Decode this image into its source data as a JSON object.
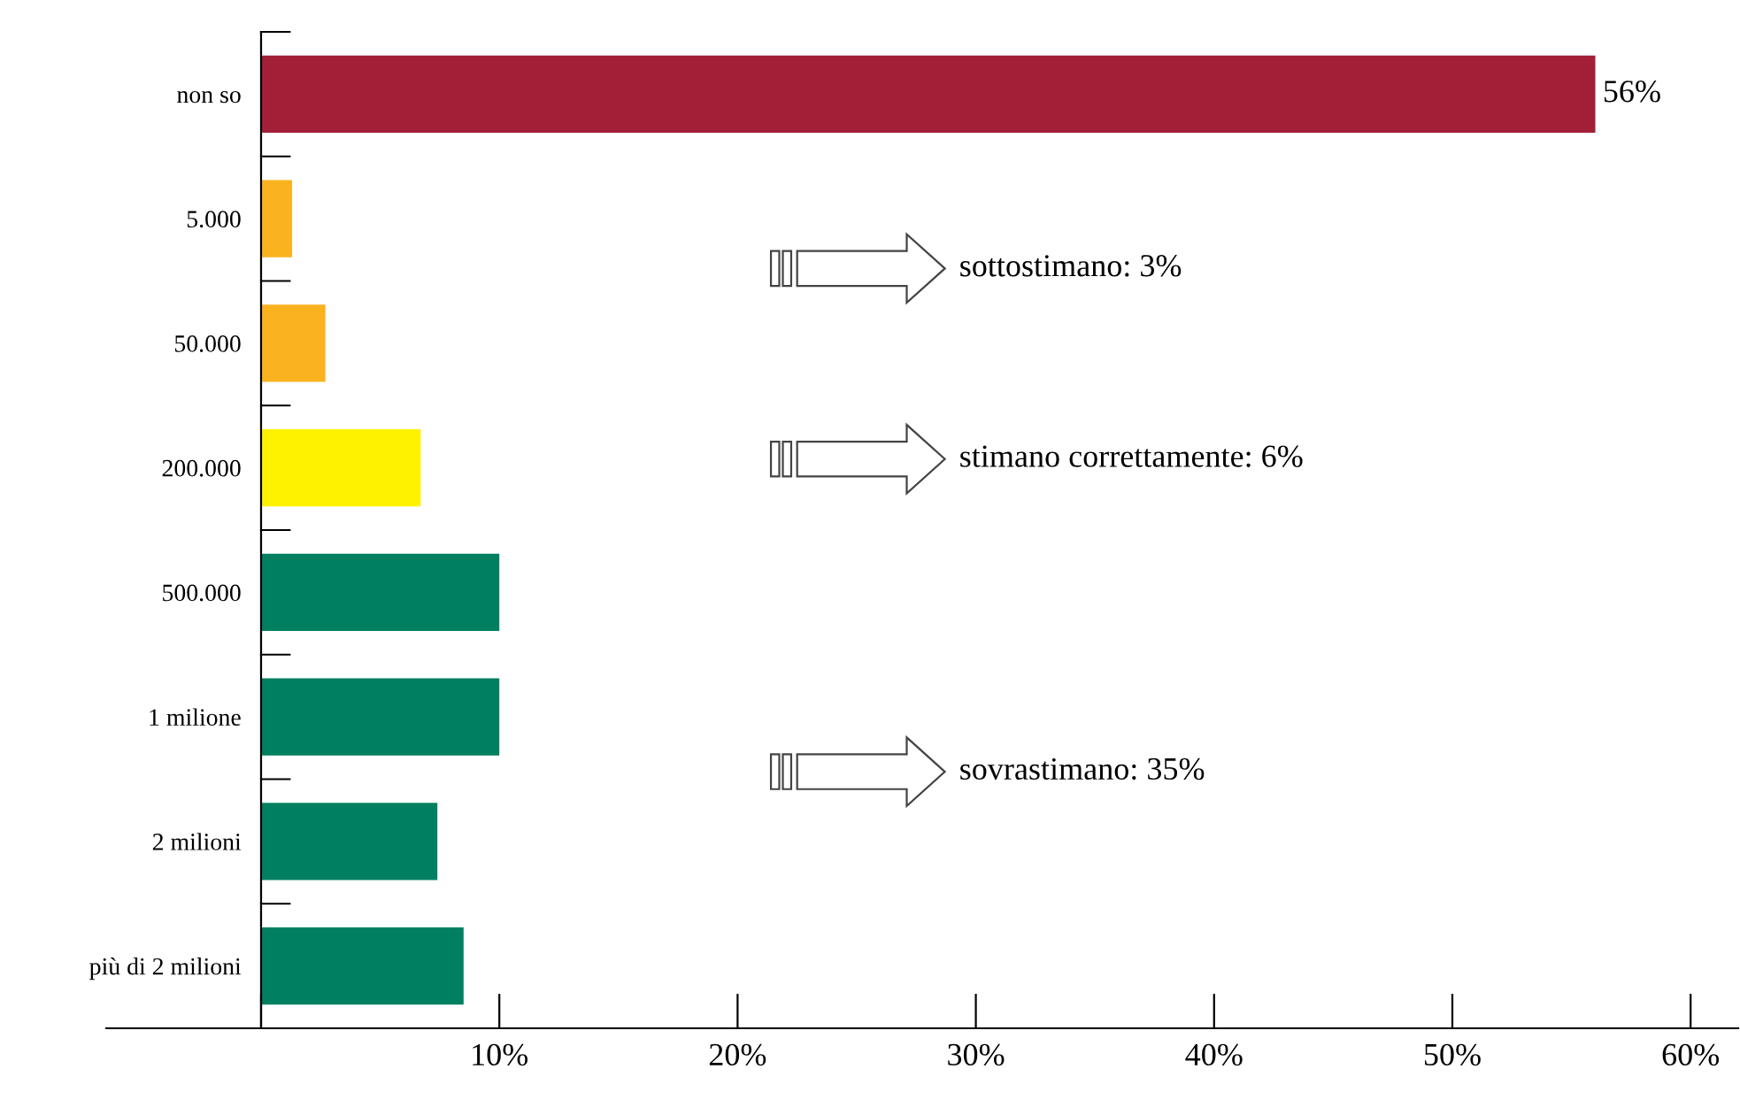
{
  "chart_data": {
    "type": "bar",
    "orientation": "horizontal",
    "categories": [
      "non so",
      "5.000",
      "50.000",
      "200.000",
      "500.000",
      "1 milione",
      "2 milioni",
      "più di 2 milioni"
    ],
    "values": [
      56,
      1.3,
      2.7,
      6.7,
      10.0,
      10.0,
      7.4,
      8.5
    ],
    "colors": [
      "#a31f37",
      "#fbb21f",
      "#fbb21f",
      "#fff200",
      "#008060",
      "#008060",
      "#008060",
      "#008060"
    ],
    "value_labels": [
      "56%",
      null,
      null,
      null,
      null,
      null,
      null,
      null
    ],
    "xlim": [
      -6.5,
      62
    ],
    "xticks": [
      {
        "value": 0,
        "label": null
      },
      {
        "value": 10,
        "label": "10%"
      },
      {
        "value": 20,
        "label": "20%"
      },
      {
        "value": 30,
        "label": "30%"
      },
      {
        "value": 40,
        "label": "40%"
      },
      {
        "value": 50,
        "label": "50%"
      },
      {
        "value": 60,
        "label": "60%"
      }
    ],
    "annotations": [
      "sottostimano: 3%",
      "stimano correttamente: 6%",
      "sovrastimano: 35%"
    ],
    "grid": false
  }
}
